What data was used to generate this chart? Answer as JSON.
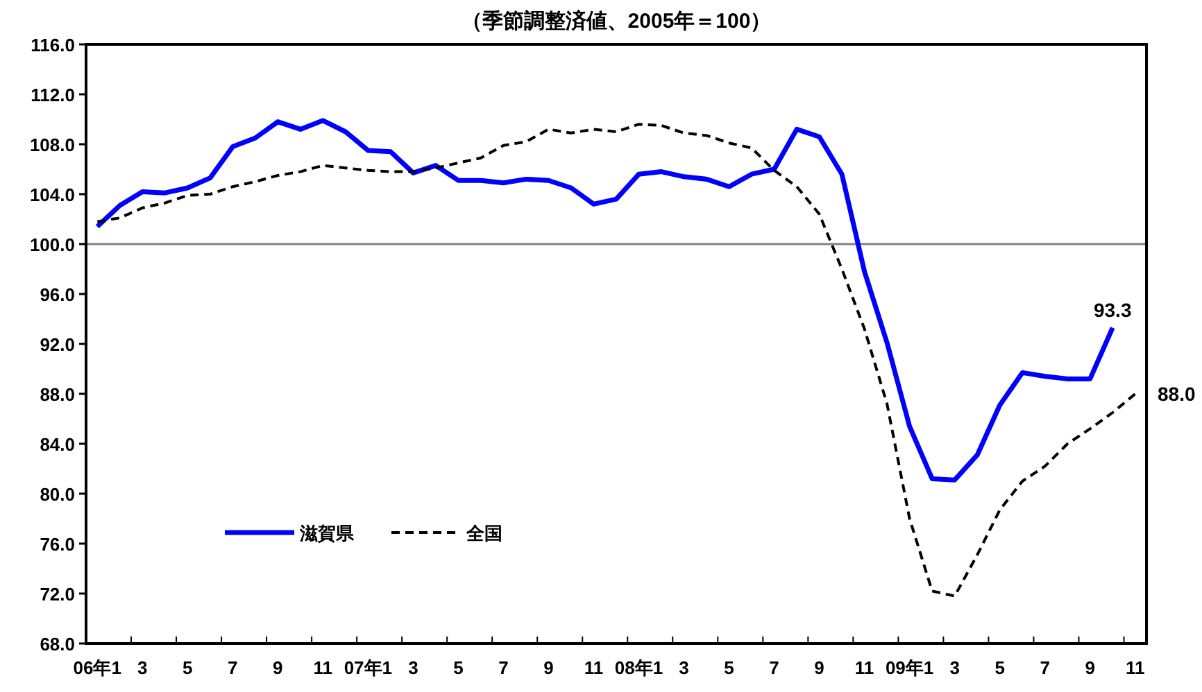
{
  "chart_data": {
    "type": "line",
    "title": "（季節調整済値、2005年＝100）",
    "categories": [
      "06年1",
      null,
      "3",
      null,
      "5",
      null,
      "7",
      null,
      "9",
      null,
      "11",
      null,
      "07年1",
      null,
      "3",
      null,
      "5",
      null,
      "7",
      null,
      "9",
      null,
      "11",
      null,
      "08年1",
      null,
      "3",
      null,
      "5",
      null,
      "7",
      null,
      "9",
      null,
      "11",
      null,
      "09年1",
      null,
      "3",
      null,
      "5",
      null,
      "7",
      null,
      "9",
      null,
      "11"
    ],
    "series": [
      {
        "name": "滋賀県",
        "color": "#0000ff",
        "line_style": "solid",
        "values": [
          101.4,
          103.1,
          104.2,
          104.1,
          104.5,
          105.3,
          107.8,
          108.5,
          109.8,
          109.2,
          109.9,
          109.0,
          107.5,
          107.4,
          105.7,
          106.3,
          105.1,
          105.1,
          104.9,
          105.2,
          105.1,
          104.5,
          103.2,
          103.6,
          105.6,
          105.8,
          105.4,
          105.2,
          104.6,
          105.6,
          106.0,
          109.2,
          108.6,
          105.6,
          97.8,
          92.1,
          85.4,
          81.2,
          81.1,
          83.1,
          87.1,
          89.7,
          89.4,
          89.2,
          89.2,
          93.3,
          null
        ],
        "value_labels": [
          null,
          null,
          null,
          null,
          null,
          null,
          null,
          null,
          null,
          null,
          null,
          null,
          null,
          null,
          null,
          null,
          null,
          null,
          null,
          null,
          null,
          null,
          null,
          null,
          null,
          null,
          null,
          null,
          null,
          null,
          null,
          null,
          null,
          null,
          null,
          null,
          null,
          null,
          null,
          null,
          null,
          null,
          null,
          null,
          null,
          "93.3",
          null
        ]
      },
      {
        "name": "全国",
        "color": "#000000",
        "line_style": "dashed",
        "values": [
          101.8,
          102.1,
          102.9,
          103.3,
          103.9,
          104.0,
          104.6,
          105.0,
          105.5,
          105.8,
          106.3,
          106.1,
          105.9,
          105.8,
          105.8,
          106.1,
          106.5,
          106.9,
          107.9,
          108.2,
          109.2,
          108.9,
          109.2,
          109.0,
          109.6,
          109.5,
          108.9,
          108.7,
          108.1,
          107.7,
          105.9,
          104.6,
          102.4,
          98.0,
          93.2,
          87.2,
          78.0,
          72.2,
          71.8,
          75.1,
          78.7,
          81.0,
          82.2,
          84.0,
          85.2,
          86.5,
          88.0
        ],
        "value_labels": [
          null,
          null,
          null,
          null,
          null,
          null,
          null,
          null,
          null,
          null,
          null,
          null,
          null,
          null,
          null,
          null,
          null,
          null,
          null,
          null,
          null,
          null,
          null,
          null,
          null,
          null,
          null,
          null,
          null,
          null,
          null,
          null,
          null,
          null,
          null,
          null,
          null,
          null,
          null,
          null,
          null,
          null,
          null,
          null,
          null,
          null,
          "88.0"
        ]
      }
    ],
    "ylim": [
      68,
      116
    ],
    "yticks": [
      {
        "value": 68,
        "label": "68.0"
      },
      {
        "value": 72,
        "label": "72.0"
      },
      {
        "value": 76,
        "label": "76.0"
      },
      {
        "value": 80,
        "label": "80.0"
      },
      {
        "value": 84,
        "label": "84.0"
      },
      {
        "value": 88,
        "label": "88.0"
      },
      {
        "value": 92,
        "label": "92.0"
      },
      {
        "value": 96,
        "label": "96.0"
      },
      {
        "value": 100,
        "label": "100.0"
      },
      {
        "value": 104,
        "label": "104.0"
      },
      {
        "value": 108,
        "label": "108.0"
      },
      {
        "value": 112,
        "label": "112.0"
      },
      {
        "value": 116,
        "label": "116.0"
      }
    ],
    "ref_lines": [
      {
        "axis": "y",
        "value": 100,
        "color": "#808080"
      }
    ],
    "legend": "bottom left"
  }
}
